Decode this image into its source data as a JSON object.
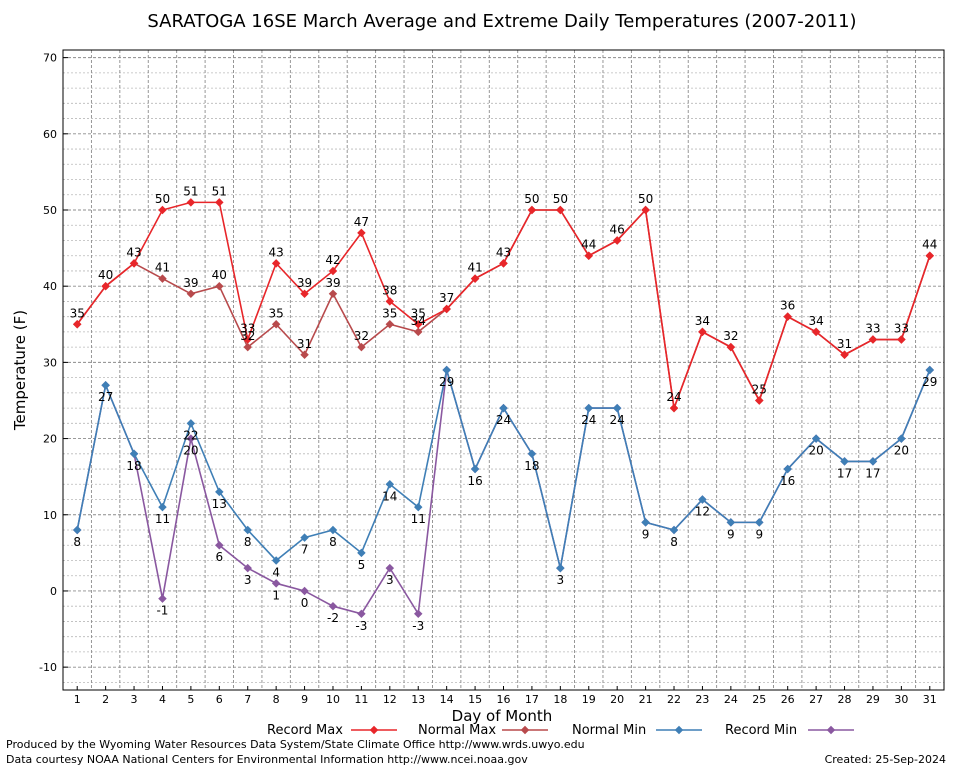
{
  "chart_data": {
    "type": "line",
    "title": "SARATOGA 16SE March Average and Extreme Daily Temperatures (2007-2011)",
    "xlabel": "Day of Month",
    "ylabel": "Temperature (F)",
    "ylim": [
      -13,
      71
    ],
    "y_ticks": [
      -10,
      0,
      10,
      20,
      30,
      40,
      50,
      60,
      70
    ],
    "x": [
      1,
      2,
      3,
      4,
      5,
      6,
      7,
      8,
      9,
      10,
      11,
      12,
      13,
      14,
      15,
      16,
      17,
      18,
      19,
      20,
      21,
      22,
      23,
      24,
      25,
      26,
      27,
      28,
      29,
      30,
      31
    ],
    "grid": true,
    "legend_position": "bottom",
    "series": [
      {
        "name": "Record Max",
        "color": "#e8262a",
        "values": [
          35,
          40,
          43,
          50,
          51,
          51,
          33,
          43,
          39,
          42,
          47,
          38,
          35,
          37,
          41,
          43,
          50,
          50,
          44,
          46,
          50,
          24,
          34,
          32,
          25,
          36,
          34,
          31,
          33,
          33,
          44
        ]
      },
      {
        "name": "Normal Max",
        "color": "#b84a4c",
        "values": [
          35,
          40,
          43,
          41,
          39,
          40,
          32,
          35,
          31,
          39,
          32,
          35,
          34,
          37,
          41,
          43,
          50,
          50,
          44,
          46,
          50,
          24,
          34,
          32,
          25,
          36,
          34,
          31,
          33,
          33,
          44
        ]
      },
      {
        "name": "Normal Min",
        "color": "#3f7fb6",
        "values": [
          8,
          27,
          18,
          11,
          22,
          13,
          8,
          4,
          7,
          8,
          5,
          14,
          11,
          29,
          16,
          24,
          18,
          3,
          24,
          24,
          9,
          8,
          12,
          9,
          9,
          16,
          20,
          17,
          17,
          20,
          29
        ]
      },
      {
        "name": "Record Min",
        "color": "#8a58a0",
        "values": [
          8,
          27,
          18,
          -1,
          20,
          6,
          3,
          1,
          0,
          -2,
          -3,
          3,
          -3,
          29,
          16,
          24,
          18,
          3,
          24,
          24,
          9,
          8,
          12,
          9,
          9,
          16,
          20,
          17,
          17,
          20,
          29
        ]
      }
    ]
  },
  "footer": {
    "line1": "Produced by the Wyoming Water Resources Data System/State Climate Office http://www.wrds.uwyo.edu",
    "line2": "Data courtesy NOAA National Centers for Environmental Information http://www.ncei.noaa.gov",
    "created": "Created:  25-Sep-2024"
  }
}
